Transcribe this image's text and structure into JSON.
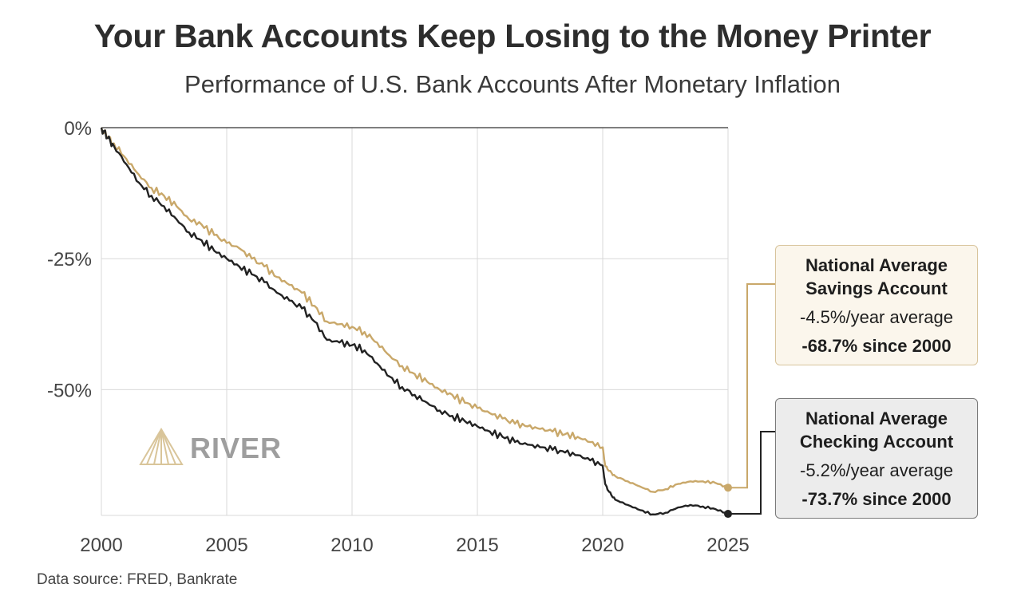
{
  "title": "Your Bank Accounts Keep Losing to the Money Printer",
  "subtitle": "Performance of U.S. Bank Accounts After Monetary Inflation",
  "source": "Data source: FRED, Bankrate",
  "logo": {
    "text": "RIVER",
    "icon": "river-logo-icon"
  },
  "callouts": {
    "savings": {
      "name_line1": "National Average",
      "name_line2": "Savings Account",
      "rate": "-4.5%/year average",
      "since": "-68.7% since 2000"
    },
    "checking": {
      "name_line1": "National Average",
      "name_line2": "Checking Account",
      "rate": "-5.2%/year average",
      "since": "-73.7% since 2000"
    }
  },
  "colors": {
    "savings": "#c9a86a",
    "checking": "#222222",
    "grid": "#d9d9d9"
  },
  "chart_data": {
    "type": "line",
    "title": "Your Bank Accounts Keep Losing to the Money Printer",
    "subtitle": "Performance of U.S. Bank Accounts After Monetary Inflation",
    "xlabel": "",
    "ylabel": "",
    "xlim": [
      2000,
      2025
    ],
    "ylim": [
      -74,
      0
    ],
    "x_ticks": [
      "2000",
      "2005",
      "2010",
      "2015",
      "2020",
      "2025"
    ],
    "y_ticks": [
      {
        "value": 0,
        "label": "0%"
      },
      {
        "value": -25,
        "label": "-25%"
      },
      {
        "value": -50,
        "label": "-50%"
      }
    ],
    "grid": true,
    "series": [
      {
        "name": "National Average Savings Account",
        "color": "#c9a86a",
        "x": [
          2000,
          2000.25,
          2000.5,
          2001,
          2001.5,
          2002,
          2002.5,
          2003,
          2003.5,
          2004,
          2004.5,
          2005,
          2005.5,
          2006,
          2006.5,
          2007,
          2007.5,
          2008,
          2008.5,
          2009,
          2009.5,
          2010,
          2010.5,
          2011,
          2011.5,
          2012,
          2012.5,
          2013,
          2013.5,
          2014,
          2014.5,
          2015,
          2015.5,
          2016,
          2016.5,
          2017,
          2017.5,
          2018,
          2018.5,
          2019,
          2019.5,
          2020,
          2020.1,
          2020.25,
          2020.5,
          2021,
          2021.5,
          2022,
          2022.5,
          2023,
          2023.5,
          2024,
          2024.5,
          2025
        ],
        "values": [
          0,
          -2,
          -3,
          -6,
          -9,
          -11.5,
          -13,
          -15,
          -17.5,
          -18.5,
          -20.5,
          -22,
          -23,
          -25,
          -26.5,
          -28.5,
          -30,
          -31.5,
          -34,
          -37,
          -37.5,
          -38,
          -39,
          -41,
          -43.5,
          -45.5,
          -47,
          -48.5,
          -50,
          -51,
          -52.5,
          -53.5,
          -54.5,
          -55.5,
          -56.5,
          -57,
          -57.5,
          -58,
          -58.5,
          -59,
          -60,
          -61,
          -64.5,
          -65.5,
          -66.5,
          -67.5,
          -68.5,
          -69.5,
          -69,
          -68,
          -67.5,
          -67.5,
          -67.8,
          -68.7
        ]
      },
      {
        "name": "National Average Checking Account",
        "color": "#222222",
        "x": [
          2000,
          2000.25,
          2000.5,
          2001,
          2001.5,
          2002,
          2002.5,
          2003,
          2003.5,
          2004,
          2004.5,
          2005,
          2005.5,
          2006,
          2006.5,
          2007,
          2007.5,
          2008,
          2008.5,
          2009,
          2009.5,
          2010,
          2010.5,
          2011,
          2011.5,
          2012,
          2012.5,
          2013,
          2013.5,
          2014,
          2014.5,
          2015,
          2015.5,
          2016,
          2016.5,
          2017,
          2017.5,
          2018,
          2018.5,
          2019,
          2019.5,
          2020,
          2020.1,
          2020.25,
          2020.5,
          2021,
          2021.5,
          2022,
          2022.5,
          2023,
          2023.5,
          2024,
          2024.5,
          2025
        ],
        "values": [
          0,
          -2,
          -3.5,
          -7,
          -10.5,
          -13,
          -15,
          -17.5,
          -20,
          -21.5,
          -23.5,
          -25,
          -26.5,
          -28,
          -29.5,
          -31.5,
          -33,
          -34.5,
          -37,
          -40.5,
          -41,
          -41.5,
          -42.5,
          -45,
          -47.5,
          -49.5,
          -51,
          -52.5,
          -54,
          -55,
          -56,
          -57,
          -58,
          -59,
          -60,
          -60.5,
          -61,
          -61.5,
          -62,
          -62.5,
          -63.5,
          -64.5,
          -68,
          -69.5,
          -71,
          -72,
          -73,
          -73.8,
          -73.5,
          -72.5,
          -72,
          -72.3,
          -72.8,
          -73.7
        ]
      }
    ]
  }
}
